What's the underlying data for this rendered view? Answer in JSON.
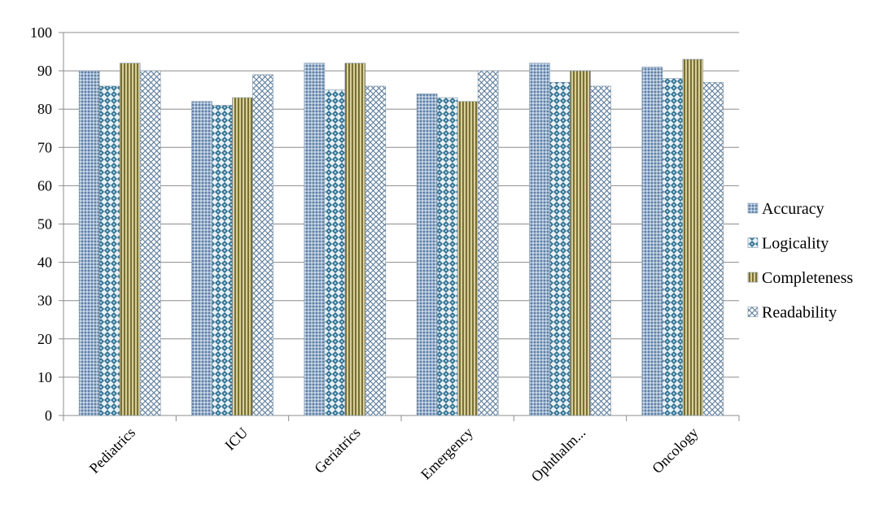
{
  "chart_data": {
    "type": "bar",
    "categories": [
      "Pediatrics",
      "ICU",
      "Geriatrics",
      "Emergency",
      "Ophthalm...",
      "Oncology"
    ],
    "series": [
      {
        "name": "Accuracy",
        "values": [
          90,
          82,
          92,
          84,
          92,
          91
        ],
        "color": "#8ea9c8",
        "pattern": "fine-dots"
      },
      {
        "name": "Logicality",
        "values": [
          86,
          81,
          85,
          83,
          87,
          88
        ],
        "color": "#2f6f8f",
        "pattern": "diamond-grid"
      },
      {
        "name": "Completeness",
        "values": [
          92,
          83,
          92,
          82,
          90,
          93
        ],
        "color": "#b5a86a",
        "pattern": "vertical-stripes"
      },
      {
        "name": "Readability",
        "values": [
          90,
          89,
          86,
          90,
          86,
          87
        ],
        "color": "#6a8aa8",
        "pattern": "cross-hatch"
      }
    ],
    "yticks": [
      "0",
      "10",
      "20",
      "30",
      "40",
      "50",
      "60",
      "70",
      "80",
      "90",
      "100"
    ],
    "ylim": [
      0,
      100
    ],
    "title": "",
    "xlabel": "",
    "ylabel": "",
    "grid": true,
    "legend_position": "right"
  }
}
